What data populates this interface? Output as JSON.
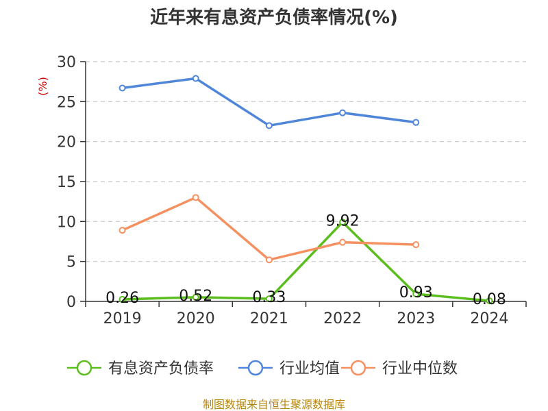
{
  "chart_data": {
    "type": "line",
    "title": "近年来有息资产负债率情况(%)",
    "ylabel": "(%)",
    "xlabel": "",
    "categories": [
      "2019",
      "2020",
      "2021",
      "2022",
      "2023",
      "2024"
    ],
    "ylim": [
      0,
      30
    ],
    "yticks": [
      0,
      5,
      10,
      15,
      20,
      25,
      30
    ],
    "grid": true,
    "legend_position": "bottom",
    "series": [
      {
        "name": "有息资产负债率",
        "color": "#5cbd1f",
        "values": [
          0.26,
          0.52,
          0.33,
          9.92,
          0.93,
          0.08
        ],
        "data_labels": [
          "0.26",
          "0.52",
          "0.33",
          "9.92",
          "0.93",
          "0.08"
        ]
      },
      {
        "name": "行业均值",
        "color": "#4f86d9",
        "values": [
          26.7,
          27.9,
          22.0,
          23.6,
          22.4,
          null
        ]
      },
      {
        "name": "行业中位数",
        "color": "#f59161",
        "values": [
          8.9,
          13.0,
          5.2,
          7.4,
          7.1,
          null
        ]
      }
    ]
  },
  "source": "制图数据来自恒生聚源数据库"
}
